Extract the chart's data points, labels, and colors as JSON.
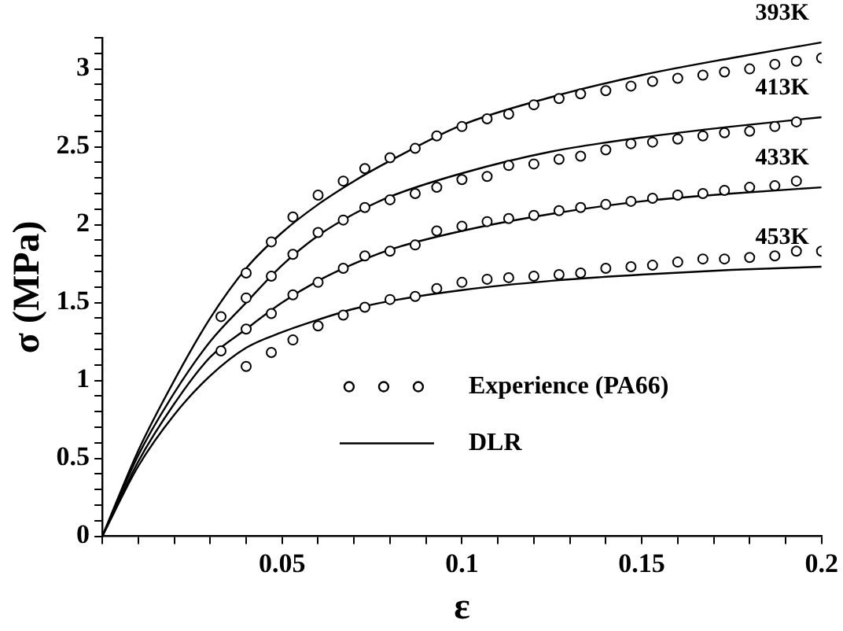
{
  "chart_data": {
    "type": "scatter",
    "xlabel": "ε",
    "ylabel": "σ (MPa)",
    "xlim": [
      0,
      0.2
    ],
    "ylim": [
      0,
      3.2
    ],
    "xticks": [
      {
        "value": 0,
        "label": null
      },
      {
        "value": 0.01,
        "label": null
      },
      {
        "value": 0.02,
        "label": null
      },
      {
        "value": 0.03,
        "label": null
      },
      {
        "value": 0.04,
        "label": null
      },
      {
        "value": 0.05,
        "label": "0.05"
      },
      {
        "value": 0.06,
        "label": null
      },
      {
        "value": 0.07,
        "label": null
      },
      {
        "value": 0.08,
        "label": null
      },
      {
        "value": 0.09,
        "label": null
      },
      {
        "value": 0.1,
        "label": "0.1"
      },
      {
        "value": 0.11,
        "label": null
      },
      {
        "value": 0.12,
        "label": null
      },
      {
        "value": 0.13,
        "label": null
      },
      {
        "value": 0.14,
        "label": null
      },
      {
        "value": 0.15,
        "label": "0.15"
      },
      {
        "value": 0.16,
        "label": null
      },
      {
        "value": 0.17,
        "label": null
      },
      {
        "value": 0.18,
        "label": null
      },
      {
        "value": 0.19,
        "label": null
      },
      {
        "value": 0.2,
        "label": "0.2"
      }
    ],
    "yticks": [
      0,
      {
        "value": 0.1,
        "label": null
      },
      {
        "value": 0.2,
        "label": null
      },
      {
        "value": 0.3,
        "label": null
      },
      {
        "value": 0.4,
        "label": null
      },
      0.5,
      {
        "value": 0.6,
        "label": null
      },
      {
        "value": 0.7,
        "label": null
      },
      {
        "value": 0.8,
        "label": null
      },
      {
        "value": 0.9,
        "label": null
      },
      1,
      {
        "value": 1.1,
        "label": null
      },
      {
        "value": 1.2,
        "label": null
      },
      {
        "value": 1.3,
        "label": null
      },
      {
        "value": 1.4,
        "label": null
      },
      1.5,
      {
        "value": 1.6,
        "label": null
      },
      {
        "value": 1.7,
        "label": null
      },
      {
        "value": 1.8,
        "label": null
      },
      {
        "value": 1.9,
        "label": null
      },
      2,
      {
        "value": 2.1,
        "label": null
      },
      {
        "value": 2.2,
        "label": null
      },
      {
        "value": 2.3,
        "label": null
      },
      {
        "value": 2.4,
        "label": null
      },
      2.5,
      {
        "value": 2.6,
        "label": null
      },
      {
        "value": 2.7,
        "label": null
      },
      {
        "value": 2.8,
        "label": null
      },
      {
        "value": 2.9,
        "label": null
      },
      3,
      {
        "value": 3.1,
        "label": null
      },
      {
        "value": 3.2,
        "label": null
      }
    ],
    "x": [
      0.033,
      0.04,
      0.047,
      0.053,
      0.06,
      0.067,
      0.073,
      0.08,
      0.087,
      0.093,
      0.1,
      0.107,
      0.113,
      0.12,
      0.127,
      0.133,
      0.14,
      0.147,
      0.153,
      0.16,
      0.167,
      0.173,
      0.18,
      0.187,
      0.193,
      0.2
    ],
    "legend": "right",
    "marker": "circle",
    "series": [
      {
        "name": "Experience (PA66)",
        "color": "#000000",
        "values": [
          1.41,
          1.69,
          1.89,
          2.05,
          2.19,
          2.28,
          2.36,
          2.43,
          2.49,
          2.57,
          2.63,
          2.68,
          2.71,
          2.77,
          2.81,
          2.84,
          2.86,
          2.89,
          2.92,
          2.94,
          2.96,
          2.98,
          3.0,
          3.03,
          3.05,
          3.07
        ]
      },
      {
        "color": "#000000",
        "values": [
          null,
          1.53,
          1.67,
          1.81,
          1.95,
          2.03,
          2.11,
          2.16,
          2.2,
          2.24,
          2.29,
          2.31,
          2.38,
          2.39,
          2.42,
          2.44,
          2.48,
          2.52,
          2.53,
          2.55,
          2.57,
          2.59,
          2.6,
          2.63,
          2.66,
          null
        ]
      },
      {
        "color": "#000000",
        "values": [
          1.19,
          1.33,
          1.43,
          1.55,
          1.63,
          1.72,
          1.8,
          1.83,
          1.87,
          1.96,
          1.99,
          2.02,
          2.04,
          2.06,
          2.09,
          2.11,
          2.13,
          2.15,
          2.17,
          2.19,
          2.2,
          2.22,
          2.24,
          2.25,
          2.28,
          null
        ]
      },
      {
        "color": "#000000",
        "values": [
          null,
          1.09,
          1.18,
          1.26,
          1.35,
          1.42,
          1.47,
          1.52,
          1.54,
          1.59,
          1.63,
          1.65,
          1.66,
          1.67,
          1.68,
          1.69,
          1.72,
          1.73,
          1.74,
          1.76,
          1.78,
          1.78,
          1.79,
          1.8,
          1.83,
          1.83
        ]
      },
      {
        "name": "DLR",
        "type": "line",
        "marker": "none",
        "color": "#000000",
        "x": [
          0,
          0.01,
          0.02,
          0.03,
          0.04,
          0.05,
          0.06,
          0.07,
          0.08,
          0.1,
          0.125,
          0.15,
          0.175,
          0.2
        ],
        "values": [
          0,
          0.55,
          1.0,
          1.4,
          1.72,
          1.95,
          2.13,
          2.28,
          2.41,
          2.64,
          2.82,
          2.96,
          3.07,
          3.17
        ]
      },
      {
        "type": "line",
        "marker": "none",
        "color": "#000000",
        "x": [
          0,
          0.01,
          0.02,
          0.03,
          0.04,
          0.05,
          0.06,
          0.07,
          0.08,
          0.1,
          0.125,
          0.15,
          0.175,
          0.2
        ],
        "values": [
          0,
          0.52,
          0.92,
          1.25,
          1.5,
          1.74,
          1.93,
          2.07,
          2.18,
          2.33,
          2.47,
          2.56,
          2.63,
          2.69
        ]
      },
      {
        "type": "line",
        "marker": "none",
        "color": "#000000",
        "x": [
          0,
          0.01,
          0.02,
          0.03,
          0.04,
          0.05,
          0.06,
          0.07,
          0.08,
          0.1,
          0.125,
          0.15,
          0.175,
          0.2
        ],
        "values": [
          0,
          0.48,
          0.85,
          1.15,
          1.33,
          1.5,
          1.64,
          1.75,
          1.84,
          1.96,
          2.07,
          2.15,
          2.2,
          2.24
        ]
      },
      {
        "type": "line",
        "marker": "none",
        "color": "#000000",
        "x": [
          0,
          0.01,
          0.02,
          0.03,
          0.04,
          0.05,
          0.06,
          0.07,
          0.08,
          0.1,
          0.125,
          0.15,
          0.175,
          0.2
        ],
        "values": [
          0,
          0.45,
          0.78,
          1.03,
          1.21,
          1.31,
          1.39,
          1.46,
          1.51,
          1.58,
          1.64,
          1.68,
          1.71,
          1.73
        ]
      }
    ],
    "annotations": [
      "393K",
      "413K",
      "433K",
      "453K"
    ]
  }
}
